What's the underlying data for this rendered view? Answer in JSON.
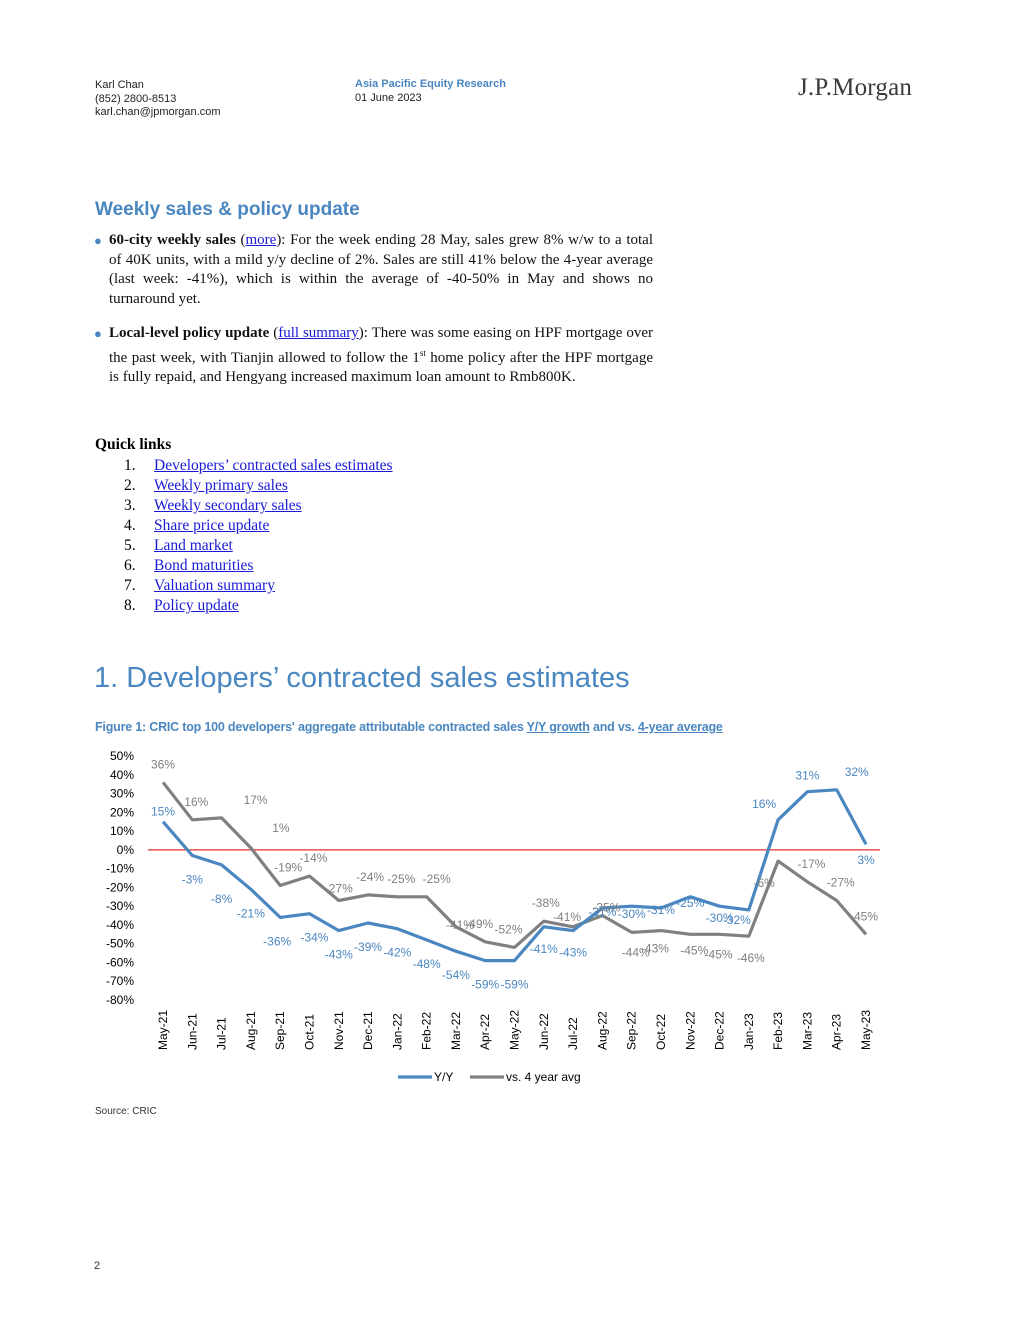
{
  "header": {
    "author_name": "Karl Chan",
    "author_phone": "(852) 2800-8513",
    "author_email": "karl.chan@jpmorgan.com",
    "report_type": "Asia Pacific Equity Research",
    "report_date": "01 June 2023",
    "logo_text": "J.P.Morgan"
  },
  "weekly": {
    "title": "Weekly sales & policy update",
    "bullet1": {
      "bold": "60-city weekly sales",
      "open": " (",
      "link": "more",
      "text": "): For the week ending 28 May, sales grew 8% w/w to a total of 40K units, with a mild y/y decline of 2%. Sales are still 41% below the 4-year average (last week: -41%), which is within the average of -40-50% in May and shows no turnaround yet."
    },
    "bullet2": {
      "bold": "Local-level policy update",
      "open": " (",
      "link": "full summary",
      "text_a": "): There was some easing on HPF mortgage over the past week, with Tianjin allowed to follow the 1",
      "sup": "st",
      "text_b": " home policy after the HPF mortgage is fully repaid, and Hengyang increased maximum loan amount to Rmb800K."
    }
  },
  "quick_links": {
    "title": "Quick links",
    "items": [
      {
        "num": "1.",
        "label": "Developers’ contracted sales estimates"
      },
      {
        "num": "2.",
        "label": "Weekly primary sales"
      },
      {
        "num": "3.",
        "label": "Weekly secondary sales"
      },
      {
        "num": "4.",
        "label": "Share price update"
      },
      {
        "num": "5.",
        "label": "Land market"
      },
      {
        "num": "6.",
        "label": "Bond maturities"
      },
      {
        "num": "7.",
        "label": "Valuation summary"
      },
      {
        "num": "8.",
        "label": "Policy update"
      }
    ]
  },
  "section1": {
    "heading": "1. Developers’ contracted sales estimates",
    "figure_caption_a": "Figure 1: CRIC top 100 developers' aggregate attributable contracted sales ",
    "figure_caption_link1": "Y/Y growth",
    "figure_caption_b": " and vs. ",
    "figure_caption_link2": "4-year average",
    "source": "Source: CRIC"
  },
  "page_number": "2",
  "colors": {
    "accent": "#4a86c0",
    "yy_series": "#4a86c0",
    "avg_series": "#808080",
    "zero_line": "#e03030",
    "link": "#1a1ad6"
  },
  "chart_data": {
    "type": "line",
    "title": "",
    "xlabel": "",
    "ylabel": "",
    "ylim": [
      -80,
      50
    ],
    "yticks": [
      50,
      40,
      30,
      20,
      10,
      0,
      -10,
      -20,
      -30,
      -40,
      -50,
      -60,
      -70,
      -80
    ],
    "ytick_labels": [
      "50%",
      "40%",
      "30%",
      "20%",
      "10%",
      "0%",
      "-10%",
      "-20%",
      "-30%",
      "-40%",
      "-50%",
      "-60%",
      "-70%",
      "-80%"
    ],
    "categories": [
      "May-21",
      "Jun-21",
      "Jul-21",
      "Aug-21",
      "Sep-21",
      "Oct-21",
      "Nov-21",
      "Dec-21",
      "Jan-22",
      "Feb-22",
      "Mar-22",
      "Apr-22",
      "May-22",
      "Jun-22",
      "Jul-22",
      "Aug-22",
      "Sep-22",
      "Oct-22",
      "Nov-22",
      "Dec-22",
      "Jan-23",
      "Feb-23",
      "Mar-23",
      "Apr-23",
      "May-23"
    ],
    "legend_position": "bottom",
    "grid": false,
    "series": [
      {
        "name": "Y/Y",
        "color": "#4a86c0",
        "values": [
          15,
          -3,
          -8,
          -21,
          -36,
          -34,
          -43,
          -39,
          -42,
          -48,
          -54,
          -59,
          -59,
          -41,
          -43,
          -31,
          -30,
          -31,
          -25,
          -30,
          -32,
          16,
          31,
          32,
          3
        ],
        "labels": [
          "15%",
          "-3%",
          "-8%",
          "-21%",
          "-36%",
          "-34%",
          "-43%",
          "-39%",
          "-42%",
          "-48%",
          "-54%",
          "-59%",
          "-59%",
          "-41%",
          "-43%",
          "-31%",
          "-30%",
          "-31%",
          "-25%",
          "-30%",
          "-32%",
          "16%",
          "31%",
          "32%",
          "3%"
        ]
      },
      {
        "name": "vs. 4 year avg",
        "color": "#808080",
        "values": [
          36,
          16,
          17,
          1,
          -19,
          -14,
          -27,
          -24,
          -25,
          -25,
          -41,
          -49,
          -52,
          -38,
          -41,
          -35,
          -44,
          -43,
          -45,
          -45,
          -46,
          -6,
          -17,
          -27,
          -45
        ],
        "labels": [
          "36%",
          "16%",
          "17%",
          "1%",
          "-19%",
          "-14%",
          "-27%",
          "-24%",
          "-25%",
          "-25%",
          "-41%",
          "-49%",
          "-52%",
          "-38%",
          "-41%",
          "-35%",
          "-44%",
          "-43%",
          "-45%",
          "-45%",
          "-46%",
          "-6%",
          "-17%",
          "-27%",
          "-45%"
        ]
      }
    ]
  }
}
